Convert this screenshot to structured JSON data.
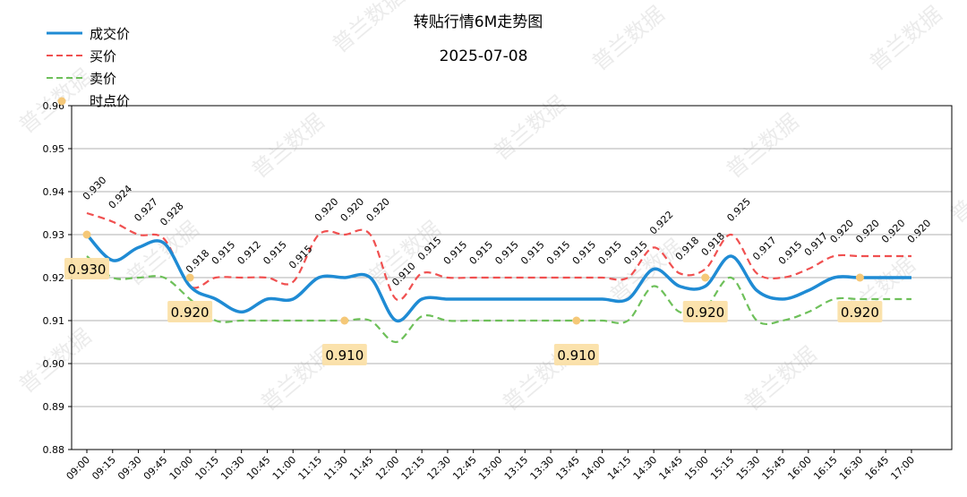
{
  "chart_data": {
    "type": "line",
    "title": "转贴行情6M走势图",
    "subtitle": "2025-07-08",
    "xlabel": "",
    "ylabel": "",
    "ylim": [
      0.88,
      0.96
    ],
    "yticks": [
      "0.88",
      "0.89",
      "0.90",
      "0.91",
      "0.92",
      "0.93",
      "0.94",
      "0.95",
      "0.96"
    ],
    "grid": "horizontal",
    "legend_position": "top-left",
    "x": [
      "09:00",
      "09:15",
      "09:30",
      "09:45",
      "10:00",
      "10:15",
      "10:30",
      "10:45",
      "11:00",
      "11:15",
      "11:30",
      "11:45",
      "12:00",
      "12:15",
      "12:30",
      "12:45",
      "13:00",
      "13:15",
      "13:30",
      "13:45",
      "14:00",
      "14:15",
      "14:30",
      "14:45",
      "15:00",
      "15:15",
      "15:30",
      "15:45",
      "16:00",
      "16:15",
      "16:30",
      "16:45",
      "17:00"
    ],
    "series": [
      {
        "name": "成交价",
        "style": "solid",
        "color": "#1f8bd4",
        "values": [
          0.93,
          0.924,
          0.927,
          0.928,
          0.918,
          0.915,
          0.912,
          0.915,
          0.915,
          0.92,
          0.92,
          0.92,
          0.91,
          0.915,
          0.915,
          0.915,
          0.915,
          0.915,
          0.915,
          0.915,
          0.915,
          0.915,
          0.922,
          0.918,
          0.918,
          0.925,
          0.917,
          0.915,
          0.917,
          0.92,
          0.92,
          0.92,
          0.92
        ],
        "labels": [
          "0.930",
          "0.924",
          "0.927",
          "0.928",
          "0.918",
          "0.915",
          "0.912",
          "0.915",
          "0.915",
          "0.920",
          "0.920",
          "0.920",
          "0.910",
          "0.915",
          "0.915",
          "0.915",
          "0.915",
          "0.915",
          "0.915",
          "0.915",
          "0.915",
          "0.915",
          "0.922",
          "0.918",
          "0.918",
          "0.925",
          "0.917",
          "0.915",
          "0.917",
          "0.920",
          "0.920",
          "0.920",
          "0.920"
        ]
      },
      {
        "name": "买价",
        "style": "dashed",
        "color": "#f05050",
        "values": [
          0.935,
          0.933,
          0.93,
          0.929,
          0.918,
          0.92,
          0.92,
          0.92,
          0.919,
          0.93,
          0.93,
          0.93,
          0.915,
          0.921,
          0.92,
          0.92,
          0.92,
          0.92,
          0.92,
          0.92,
          0.92,
          0.92,
          0.927,
          0.921,
          0.922,
          0.93,
          0.921,
          0.92,
          0.922,
          0.925,
          0.925,
          0.925,
          0.925
        ]
      },
      {
        "name": "卖价",
        "style": "dashed",
        "color": "#6ec05a",
        "values": [
          0.925,
          0.92,
          0.92,
          0.92,
          0.915,
          0.91,
          0.91,
          0.91,
          0.91,
          0.91,
          0.91,
          0.91,
          0.905,
          0.911,
          0.91,
          0.91,
          0.91,
          0.91,
          0.91,
          0.91,
          0.91,
          0.91,
          0.918,
          0.912,
          0.913,
          0.92,
          0.91,
          0.91,
          0.912,
          0.915,
          0.915,
          0.915,
          0.915
        ]
      },
      {
        "name": "时点价",
        "style": "scatter",
        "color": "#f5c878",
        "points": [
          {
            "x": "09:00",
            "y": 0.93,
            "label": "0.930"
          },
          {
            "x": "10:00",
            "y": 0.92,
            "label": "0.920"
          },
          {
            "x": "11:30",
            "y": 0.91,
            "label": "0.910"
          },
          {
            "x": "13:45",
            "y": 0.91,
            "label": "0.910"
          },
          {
            "x": "15:00",
            "y": 0.92,
            "label": "0.920"
          },
          {
            "x": "16:30",
            "y": 0.92,
            "label": "0.920"
          }
        ]
      }
    ]
  },
  "watermark": "普兰数据"
}
